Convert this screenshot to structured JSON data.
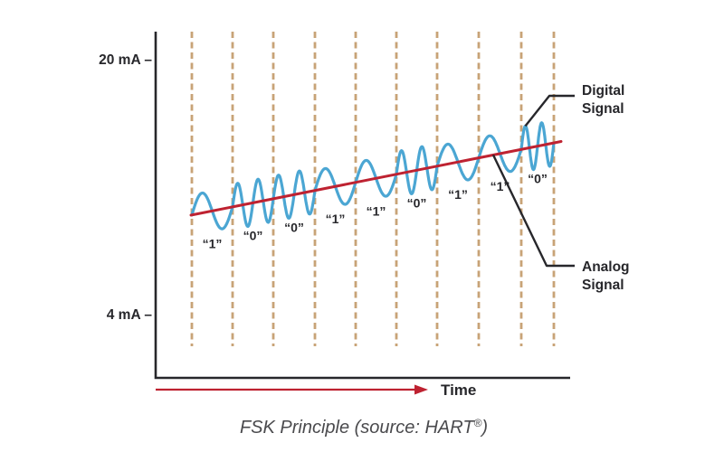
{
  "diagram": {
    "caption": {
      "main": "FSK Principle (source: HART",
      "reg_mark": "®",
      "close": ")"
    },
    "y_axis": {
      "top_label": "20 mA –",
      "bottom_label": "4 mA –"
    },
    "x_axis": {
      "label": "Time"
    },
    "callouts": {
      "digital": {
        "line1": "Digital",
        "line2": "Signal"
      },
      "analog": {
        "line1": "Analog",
        "line2": "Signal"
      }
    },
    "bits": [
      "1",
      "0",
      "0",
      "1",
      "1",
      "0",
      "1",
      "1",
      "0"
    ],
    "bit_labels": [
      "“1”",
      "“0”",
      "“0”",
      "“1”",
      "“1”",
      "“0”",
      "“1”",
      "“1”",
      "“0”"
    ],
    "encoding": {
      "cycles_per_bit_1": 1,
      "cycles_per_bit_0": 2
    },
    "colors": {
      "digital_wave": "#4ba6d3",
      "analog_line": "#be2231",
      "bit_divider": "#c8a377",
      "axis_ink": "#27272b",
      "time_arrow": "#be2231",
      "caption_ink": "#4a4a4d"
    }
  }
}
